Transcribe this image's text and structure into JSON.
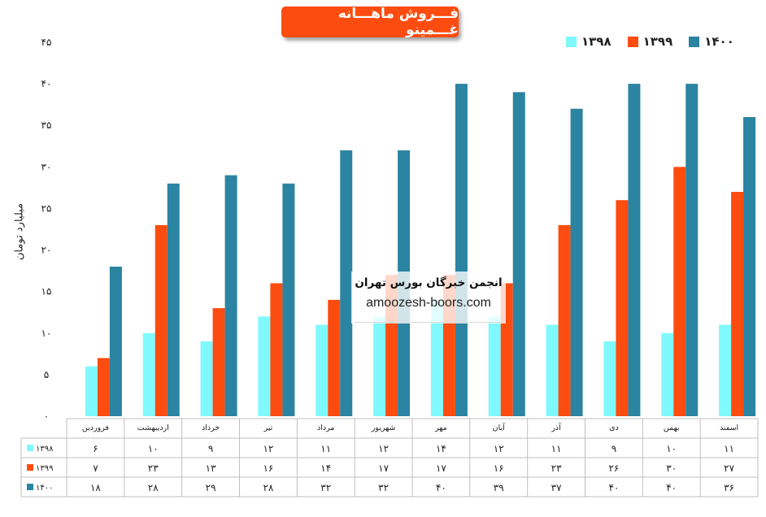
{
  "title": "فـــروش ماهـــانه غـــمینو",
  "watermark": {
    "title": "انجمن خبرگان بورس تهران",
    "url": "amoozesh-boors.com"
  },
  "colors": {
    "1398": "#7ff9fd",
    "1399": "#fc4c0f",
    "1400": "#2b84a1",
    "title_bg": "#fc4c0f"
  },
  "chart_data": {
    "type": "bar",
    "title": "فـــروش ماهـــانه غـــمینو",
    "ylabel": "میلیارد تومان",
    "xlabel": "",
    "ylim": [
      0,
      45
    ],
    "yticks": [
      0,
      5,
      10,
      15,
      20,
      25,
      30,
      35,
      40,
      45
    ],
    "ytick_labels": [
      "۰",
      "۵",
      "۱۰",
      "۱۵",
      "۲۰",
      "۲۵",
      "۳۰",
      "۳۵",
      "۴۰",
      "۴۵"
    ],
    "legend_position": "top-right",
    "categories": [
      "فروردین",
      "اردیبهشت",
      "خرداد",
      "تیر",
      "مرداد",
      "شهریور",
      "مهر",
      "آبان",
      "آذر",
      "دی",
      "بهمن",
      "اسفند"
    ],
    "series": [
      {
        "name": "۱۳۹۸",
        "color": "#7ff9fd",
        "values": [
          6,
          10,
          9,
          12,
          11,
          12,
          14,
          12,
          11,
          9,
          10,
          11
        ],
        "labels": [
          "۶",
          "۱۰",
          "۹",
          "۱۲",
          "۱۱",
          "۱۲",
          "۱۴",
          "۱۲",
          "۱۱",
          "۹",
          "۱۰",
          "۱۱"
        ]
      },
      {
        "name": "۱۳۹۹",
        "color": "#fc4c0f",
        "values": [
          7,
          23,
          13,
          16,
          14,
          17,
          17,
          16,
          23,
          26,
          30,
          27
        ],
        "labels": [
          "۷",
          "۲۳",
          "۱۳",
          "۱۶",
          "۱۴",
          "۱۷",
          "۱۷",
          "۱۶",
          "۲۳",
          "۲۶",
          "۳۰",
          "۲۷"
        ]
      },
      {
        "name": "۱۴۰۰",
        "color": "#2b84a1",
        "values": [
          18,
          28,
          29,
          28,
          32,
          32,
          40,
          39,
          37,
          40,
          40,
          36
        ],
        "labels": [
          "۱۸",
          "۲۸",
          "۲۹",
          "۲۸",
          "۳۲",
          "۳۲",
          "۴۰",
          "۳۹",
          "۳۷",
          "۴۰",
          "۴۰",
          "۳۶"
        ]
      }
    ]
  }
}
